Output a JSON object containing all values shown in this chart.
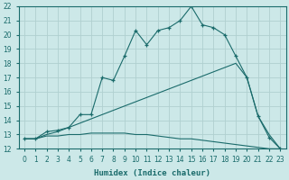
{
  "xlabel": "Humidex (Indice chaleur)",
  "background_color": "#cce8e8",
  "grid_color": "#b0d0d0",
  "line_color": "#1a6b6b",
  "xlim": [
    -0.5,
    23.5
  ],
  "ylim": [
    12,
    22
  ],
  "xticks": [
    0,
    1,
    2,
    3,
    4,
    5,
    6,
    7,
    8,
    9,
    10,
    11,
    12,
    13,
    14,
    15,
    16,
    17,
    18,
    19,
    20,
    21,
    22,
    23
  ],
  "yticks": [
    12,
    13,
    14,
    15,
    16,
    17,
    18,
    19,
    20,
    21,
    22
  ],
  "curve1_x": [
    0,
    1,
    2,
    3,
    4,
    5,
    6,
    7,
    8,
    9,
    10,
    11,
    12,
    13,
    14,
    15,
    16,
    17,
    18,
    19,
    20,
    21,
    22,
    23
  ],
  "curve1_y": [
    12.7,
    12.7,
    13.2,
    13.3,
    13.5,
    14.4,
    14.4,
    17.0,
    16.8,
    18.5,
    20.3,
    19.3,
    20.3,
    20.5,
    21.0,
    22.0,
    20.7,
    20.5,
    20.0,
    18.5,
    17.0,
    14.3,
    12.8,
    12.0
  ],
  "curve2_x": [
    0,
    1,
    2,
    3,
    4,
    5,
    6,
    7,
    8,
    9,
    10,
    11,
    12,
    13,
    14,
    15,
    16,
    17,
    18,
    19,
    20,
    21,
    22,
    23
  ],
  "curve2_y": [
    12.7,
    12.7,
    13.0,
    13.2,
    13.5,
    13.8,
    14.1,
    14.4,
    14.7,
    15.0,
    15.3,
    15.6,
    15.9,
    16.2,
    16.5,
    16.8,
    17.1,
    17.4,
    17.7,
    18.0,
    17.0,
    14.3,
    13.0,
    12.0
  ],
  "curve3_x": [
    0,
    1,
    2,
    3,
    4,
    5,
    6,
    7,
    8,
    9,
    10,
    11,
    12,
    13,
    14,
    15,
    16,
    17,
    18,
    19,
    20,
    21,
    22,
    23
  ],
  "curve3_y": [
    12.7,
    12.7,
    12.9,
    12.9,
    13.0,
    13.0,
    13.1,
    13.1,
    13.1,
    13.1,
    13.0,
    13.0,
    12.9,
    12.8,
    12.7,
    12.7,
    12.6,
    12.5,
    12.4,
    12.3,
    12.2,
    12.1,
    12.0,
    12.0
  ]
}
